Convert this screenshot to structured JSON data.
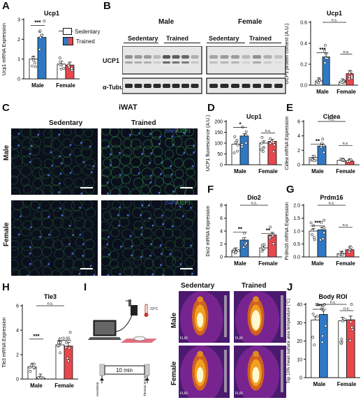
{
  "colors": {
    "sedentary": "#ffffff",
    "trained_male": "#2f78c4",
    "trained_female": "#e8474c",
    "dapi": "#3050d0",
    "ucp1": "#3aa84a"
  },
  "letters": {
    "A": "A",
    "B": "B",
    "C": "C",
    "D": "D",
    "E": "E",
    "F": "F",
    "G": "G",
    "H": "H",
    "I": "I",
    "J": "J"
  },
  "legend": {
    "sedentary": "Sedentary",
    "trained": "Trained"
  },
  "blot": {
    "male": "Male",
    "female": "Female",
    "sed": "Sedentary",
    "trained": "Trained",
    "row1": "UCP1",
    "row2": "α-Tubulin"
  },
  "iwat": {
    "title": "iWAT",
    "sed": "Sedentary",
    "trained": "Trained",
    "male": "Male",
    "female": "Female",
    "stain_dapi": "DAPI",
    "stain_sep": "/",
    "stain_ucp1": "UCP1"
  },
  "schematic": {
    "temp": "23°C",
    "duration": "10 min",
    "start": "Anesthetic",
    "end": "Thermal Image"
  },
  "thermal": {
    "sed": "Sedentary",
    "trained": "Trained",
    "male": "Male",
    "female": "Female",
    "brand": "FLIR"
  },
  "chart_data": [
    {
      "id": "A",
      "type": "bar",
      "title": "Ucp1",
      "ylabel": "Ucp1 mRNA Expression",
      "ylim": [
        0,
        3
      ],
      "yticks": [
        "0",
        "1",
        "2",
        "3"
      ],
      "categories": [
        "Male",
        "Female"
      ],
      "series": [
        {
          "name": "Sedentary",
          "values": [
            1.0,
            0.75
          ]
        },
        {
          "name": "Trained",
          "values": [
            2.1,
            0.7
          ]
        }
      ],
      "annotations": [
        "***",
        "n.s."
      ]
    },
    {
      "id": "B",
      "type": "bar",
      "title": "Ucp1",
      "ylabel": "UCP1 protein content (A.U.)",
      "ylim": [
        0,
        0.6
      ],
      "yticks": [
        "0.0",
        "0.2",
        "0.4",
        "0.6"
      ],
      "categories": [
        "Male",
        "Female"
      ],
      "series": [
        {
          "name": "Sedentary",
          "values": [
            0.04,
            0.03
          ]
        },
        {
          "name": "Trained",
          "values": [
            0.27,
            0.11
          ]
        }
      ],
      "annotations": [
        "***",
        "n.s.",
        "n.s."
      ]
    },
    {
      "id": "D",
      "type": "bar",
      "title": "Ucp1",
      "ylabel": "UCP1 fluorescence (A.U.)",
      "ylim": [
        0,
        200
      ],
      "yticks": [
        "0",
        "50",
        "100",
        "150",
        "200"
      ],
      "categories": [
        "Male",
        "Female"
      ],
      "series": [
        {
          "name": "Sedentary",
          "values": [
            95,
            100
          ]
        },
        {
          "name": "Trained",
          "values": [
            133,
            108
          ]
        }
      ],
      "annotations": [
        "*",
        "n.s."
      ]
    },
    {
      "id": "E",
      "type": "bar",
      "title": "Cidea",
      "ylabel": "Cidea mRNA Expression",
      "ylim": [
        0,
        6
      ],
      "yticks": [
        "0",
        "2",
        "4",
        "6"
      ],
      "categories": [
        "Male",
        "Female"
      ],
      "series": [
        {
          "name": "Sedentary",
          "values": [
            1.0,
            0.6
          ]
        },
        {
          "name": "Trained",
          "values": [
            2.6,
            0.5
          ]
        }
      ],
      "annotations": [
        "**",
        "n.s.",
        "n.s."
      ]
    },
    {
      "id": "F",
      "type": "bar",
      "title": "Dio2",
      "ylabel": "Dio2 mRNA Expression",
      "ylim": [
        0,
        8
      ],
      "yticks": [
        "0",
        "2",
        "4",
        "6",
        "8"
      ],
      "categories": [
        "Male",
        "Female"
      ],
      "series": [
        {
          "name": "Sedentary",
          "values": [
            1.0,
            1.4
          ]
        },
        {
          "name": "Trained",
          "values": [
            2.6,
            3.4
          ]
        }
      ],
      "annotations": [
        "**",
        "**",
        "n.s."
      ]
    },
    {
      "id": "G",
      "type": "bar",
      "title": "Prdm16",
      "ylabel": "Prdm16 mRNA Expression",
      "ylim": [
        0,
        2
      ],
      "yticks": [
        "0.0",
        "0.5",
        "1.0",
        "1.5",
        "2.0"
      ],
      "categories": [
        "Male",
        "Female"
      ],
      "series": [
        {
          "name": "Sedentary",
          "values": [
            1.0,
            0.12
          ]
        },
        {
          "name": "Trained",
          "values": [
            1.05,
            0.28
          ]
        }
      ],
      "annotations": [
        "***",
        "n.s.",
        "n.s."
      ]
    },
    {
      "id": "H",
      "type": "bar",
      "title": "Tle3",
      "ylabel": "Tle3 mRNA Expression",
      "ylim": [
        0,
        6
      ],
      "yticks": [
        "0",
        "2",
        "4",
        "6"
      ],
      "categories": [
        "Male",
        "Female"
      ],
      "series": [
        {
          "name": "Sedentary",
          "values": [
            1.0,
            2.8
          ]
        },
        {
          "name": "Trained",
          "values": [
            0.1,
            2.7
          ]
        }
      ],
      "annotations": [
        "***",
        "p=0.05",
        "n.s."
      ]
    },
    {
      "id": "J",
      "type": "bar",
      "title": "Body ROI",
      "ylabel": "Top 10% mean surface area temperature (°C)",
      "ylim": [
        0,
        40
      ],
      "yticks": [
        "0",
        "10",
        "20",
        "30",
        "40"
      ],
      "categories": [
        "Male",
        "Female"
      ],
      "series": [
        {
          "name": "Sedentary",
          "values": [
            31.5,
            31
          ]
        },
        {
          "name": "Trained",
          "values": [
            34.5,
            31.6
          ]
        }
      ],
      "annotations": [
        "***",
        "n.s.",
        "n.s."
      ]
    }
  ]
}
